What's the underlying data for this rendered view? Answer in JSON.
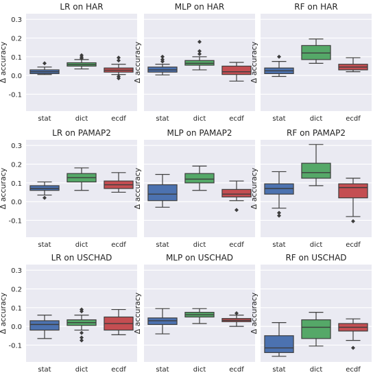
{
  "chart_data": [
    {
      "type": "boxplot",
      "title": "LR on HAR",
      "ylabel": "Δ accuracy",
      "categories": [
        "stat",
        "dict",
        "ecdf"
      ],
      "yticks": [
        "0.3",
        "0.2",
        "0.1",
        "0.0",
        "-0.1"
      ],
      "ylim": [
        -0.19,
        0.33
      ],
      "show_ylabel": true,
      "show_yticks": true,
      "boxes": [
        {
          "label": "stat",
          "q1": 0.01,
          "median": 0.02,
          "q3": 0.03,
          "whisker_low": 0.005,
          "whisker_high": 0.045,
          "outliers": [
            0.065
          ]
        },
        {
          "label": "dict",
          "q1": 0.05,
          "median": 0.058,
          "q3": 0.068,
          "whisker_low": 0.035,
          "whisker_high": 0.085,
          "outliers": [
            0.09,
            0.098,
            0.108
          ]
        },
        {
          "label": "ecdf",
          "q1": 0.018,
          "median": 0.028,
          "q3": 0.04,
          "whisker_low": 0.005,
          "whisker_high": 0.06,
          "outliers": [
            0.08,
            0.095,
            -0.005,
            -0.015
          ]
        }
      ]
    },
    {
      "type": "boxplot",
      "title": "MLP on HAR",
      "ylabel": "Δ accuracy",
      "categories": [
        "stat",
        "dict",
        "ecdf"
      ],
      "yticks": [
        "0.3",
        "0.2",
        "0.1",
        "0.0",
        "-0.1"
      ],
      "ylim": [
        -0.19,
        0.33
      ],
      "show_ylabel": true,
      "show_yticks": false,
      "boxes": [
        {
          "label": "stat",
          "q1": 0.018,
          "median": 0.03,
          "q3": 0.045,
          "whisker_low": 0.003,
          "whisker_high": 0.06,
          "outliers": [
            0.075,
            0.085,
            0.1
          ]
        },
        {
          "label": "dict",
          "q1": 0.055,
          "median": 0.065,
          "q3": 0.08,
          "whisker_low": 0.03,
          "whisker_high": 0.1,
          "outliers": [
            0.115,
            0.13,
            0.18
          ]
        },
        {
          "label": "ecdf",
          "q1": 0.005,
          "median": 0.02,
          "q3": 0.05,
          "whisker_low": -0.03,
          "whisker_high": 0.07,
          "outliers": []
        }
      ]
    },
    {
      "type": "boxplot",
      "title": "RF on HAR",
      "ylabel": "Δ accuracy",
      "categories": [
        "stat",
        "dict",
        "ecdf"
      ],
      "yticks": [
        "0.3",
        "0.2",
        "0.1",
        "0.0",
        "-0.1"
      ],
      "ylim": [
        -0.19,
        0.33
      ],
      "show_ylabel": true,
      "show_yticks": false,
      "boxes": [
        {
          "label": "stat",
          "q1": 0.01,
          "median": 0.025,
          "q3": 0.04,
          "whisker_low": -0.005,
          "whisker_high": 0.075,
          "outliers": [
            0.1
          ]
        },
        {
          "label": "dict",
          "q1": 0.085,
          "median": 0.12,
          "q3": 0.16,
          "whisker_low": 0.065,
          "whisker_high": 0.195,
          "outliers": []
        },
        {
          "label": "ecdf",
          "q1": 0.03,
          "median": 0.045,
          "q3": 0.06,
          "whisker_low": 0.02,
          "whisker_high": 0.095,
          "outliers": []
        }
      ]
    },
    {
      "type": "boxplot",
      "title": "LR on PAMAP2",
      "ylabel": "Δ accuracy",
      "categories": [
        "stat",
        "dict",
        "ecdf"
      ],
      "yticks": [
        "0.3",
        "0.2",
        "0.1",
        "0.0",
        "-0.1"
      ],
      "ylim": [
        -0.19,
        0.33
      ],
      "show_ylabel": true,
      "show_yticks": true,
      "boxes": [
        {
          "label": "stat",
          "q1": 0.06,
          "median": 0.07,
          "q3": 0.085,
          "whisker_low": 0.035,
          "whisker_high": 0.105,
          "outliers": [
            0.02
          ]
        },
        {
          "label": "dict",
          "q1": 0.105,
          "median": 0.128,
          "q3": 0.15,
          "whisker_low": 0.06,
          "whisker_high": 0.18,
          "outliers": []
        },
        {
          "label": "ecdf",
          "q1": 0.07,
          "median": 0.09,
          "q3": 0.11,
          "whisker_low": 0.05,
          "whisker_high": 0.155,
          "outliers": []
        }
      ]
    },
    {
      "type": "boxplot",
      "title": "MLP on PAMAP2",
      "ylabel": "Δ accuracy",
      "categories": [
        "stat",
        "dict",
        "ecdf"
      ],
      "yticks": [
        "0.3",
        "0.2",
        "0.1",
        "0.0",
        "-0.1"
      ],
      "ylim": [
        -0.19,
        0.33
      ],
      "show_ylabel": true,
      "show_yticks": false,
      "boxes": [
        {
          "label": "stat",
          "q1": 0.005,
          "median": 0.04,
          "q3": 0.09,
          "whisker_low": -0.03,
          "whisker_high": 0.145,
          "outliers": []
        },
        {
          "label": "dict",
          "q1": 0.1,
          "median": 0.12,
          "q3": 0.15,
          "whisker_low": 0.06,
          "whisker_high": 0.19,
          "outliers": []
        },
        {
          "label": "ecdf",
          "q1": 0.025,
          "median": 0.04,
          "q3": 0.065,
          "whisker_low": 0.005,
          "whisker_high": 0.11,
          "outliers": [
            -0.045
          ]
        }
      ]
    },
    {
      "type": "boxplot",
      "title": "RF on PAMAP2",
      "ylabel": "Δ accuracy",
      "categories": [
        "stat",
        "dict",
        "ecdf"
      ],
      "yticks": [
        "0.3",
        "0.2",
        "0.1",
        "0.0",
        "-0.1"
      ],
      "ylim": [
        -0.19,
        0.33
      ],
      "show_ylabel": true,
      "show_yticks": false,
      "boxes": [
        {
          "label": "stat",
          "q1": 0.04,
          "median": 0.07,
          "q3": 0.095,
          "whisker_low": -0.035,
          "whisker_high": 0.16,
          "outliers": [
            -0.06,
            -0.075
          ]
        },
        {
          "label": "dict",
          "q1": 0.125,
          "median": 0.155,
          "q3": 0.205,
          "whisker_low": 0.085,
          "whisker_high": 0.305,
          "outliers": []
        },
        {
          "label": "ecdf",
          "q1": 0.02,
          "median": 0.075,
          "q3": 0.095,
          "whisker_low": -0.08,
          "whisker_high": 0.125,
          "outliers": [
            -0.105
          ]
        }
      ]
    },
    {
      "type": "boxplot",
      "title": "LR on USCHAD",
      "ylabel": "Δ accuracy",
      "categories": [
        "stat",
        "dict",
        "ecdf"
      ],
      "yticks": [
        "0.3",
        "0.2",
        "0.1",
        "0.0",
        "-0.1"
      ],
      "ylim": [
        -0.19,
        0.33
      ],
      "show_ylabel": true,
      "show_yticks": true,
      "boxes": [
        {
          "label": "stat",
          "q1": -0.02,
          "median": 0.01,
          "q3": 0.03,
          "whisker_low": -0.065,
          "whisker_high": 0.06,
          "outliers": []
        },
        {
          "label": "dict",
          "q1": 0.005,
          "median": 0.02,
          "q3": 0.035,
          "whisker_low": -0.02,
          "whisker_high": 0.06,
          "outliers": [
            0.08,
            0.09,
            -0.035,
            -0.06,
            -0.075
          ]
        },
        {
          "label": "ecdf",
          "q1": -0.02,
          "median": 0.015,
          "q3": 0.05,
          "whisker_low": -0.045,
          "whisker_high": 0.09,
          "outliers": []
        }
      ]
    },
    {
      "type": "boxplot",
      "title": "MLP on USCHAD",
      "ylabel": "Δ accuracy",
      "categories": [
        "stat",
        "dict",
        "ecdf"
      ],
      "yticks": [
        "0.3",
        "0.2",
        "0.1",
        "0.0",
        "-0.1"
      ],
      "ylim": [
        -0.19,
        0.33
      ],
      "show_ylabel": true,
      "show_yticks": false,
      "boxes": [
        {
          "label": "stat",
          "q1": 0.01,
          "median": 0.03,
          "q3": 0.045,
          "whisker_low": -0.04,
          "whisker_high": 0.095,
          "outliers": []
        },
        {
          "label": "dict",
          "q1": 0.05,
          "median": 0.062,
          "q3": 0.075,
          "whisker_low": 0.015,
          "whisker_high": 0.095,
          "outliers": []
        },
        {
          "label": "ecdf",
          "q1": 0.025,
          "median": 0.032,
          "q3": 0.042,
          "whisker_low": 0.0,
          "whisker_high": 0.06,
          "outliers": [
            0.07
          ]
        }
      ]
    },
    {
      "type": "boxplot",
      "title": "RF on USCHAD",
      "ylabel": "Δ accuracy",
      "categories": [
        "stat",
        "dict",
        "ecdf"
      ],
      "yticks": [
        "0.3",
        "0.2",
        "0.1",
        "0.0",
        "-0.1"
      ],
      "ylim": [
        -0.19,
        0.33
      ],
      "show_ylabel": true,
      "show_yticks": false,
      "boxes": [
        {
          "label": "stat",
          "q1": -0.14,
          "median": -0.115,
          "q3": -0.05,
          "whisker_low": -0.16,
          "whisker_high": 0.02,
          "outliers": []
        },
        {
          "label": "dict",
          "q1": -0.065,
          "median": -0.005,
          "q3": 0.035,
          "whisker_low": -0.105,
          "whisker_high": 0.075,
          "outliers": []
        },
        {
          "label": "ecdf",
          "q1": -0.025,
          "median": -0.005,
          "q3": 0.015,
          "whisker_low": -0.075,
          "whisker_high": 0.04,
          "outliers": [
            -0.115
          ]
        }
      ]
    }
  ],
  "colors": {
    "panel_bg": "#eaeaf2",
    "grid": "#ffffff",
    "stat": "#4c72b0",
    "dict": "#55a868",
    "ecdf": "#c44e52",
    "box_edge": "#3d3d3d",
    "page_bg": "#ffffff"
  }
}
